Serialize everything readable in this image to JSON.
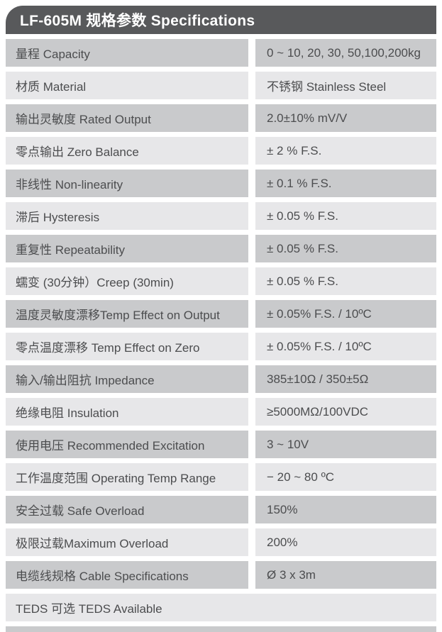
{
  "header": {
    "title": "LF-605M 规格参数 Specifications"
  },
  "table": {
    "rows": [
      {
        "label": "量程 Capacity",
        "value": "0 ~ 10, 20, 30, 50,100,200kg"
      },
      {
        "label": "材质 Material",
        "value": "不锈钢 Stainless Steel"
      },
      {
        "label": "输出灵敏度 Rated Output",
        "value": "2.0±10% mV/V"
      },
      {
        "label": "零点输出  Zero Balance",
        "value": "± 2 % F.S."
      },
      {
        "label": "非线性 Non-linearity",
        "value": "± 0.1 % F.S."
      },
      {
        "label": "滞后 Hysteresis",
        "value": "± 0.05 % F.S."
      },
      {
        "label": "重复性 Repeatability",
        "value": "± 0.05 % F.S."
      },
      {
        "label": "蠕变 (30分钟）Creep (30min)",
        "value": "± 0.05 % F.S."
      },
      {
        "label": "温度灵敏度漂移Temp Effect on Output",
        "value": "± 0.05% F.S. / 10ºC"
      },
      {
        "label": "零点温度漂移 Temp Effect on Zero",
        "value": "± 0.05% F.S. / 10ºC"
      },
      {
        "label": "输入/输出阻抗 Impedance",
        "value": "385±10Ω / 350±5Ω"
      },
      {
        "label": "绝缘电阻 Insulation",
        "value": "≥5000MΩ/100VDC"
      },
      {
        "label": "使用电压 Recommended Excitation",
        "value": "3 ~ 10V"
      },
      {
        "label": "工作温度范围 Operating Temp Range",
        "value": "− 20 ~ 80 ºC"
      },
      {
        "label": "安全过载 Safe Overload",
        "value": "150%"
      },
      {
        "label": "极限过载Maximum Overload",
        "value": "200%"
      },
      {
        "label": "电缆线规格 Cable Specifications",
        "value": "Ø 3 x 3m"
      },
      {
        "label": "TEDS 可选 TEDS Available",
        "value": "",
        "full_width": true
      }
    ]
  },
  "colors": {
    "header_bg": "#58595b",
    "header_text": "#ffffff",
    "row_dark": "#c9cacc",
    "row_light": "#e7e7e9",
    "text": "#4c4d4f"
  }
}
